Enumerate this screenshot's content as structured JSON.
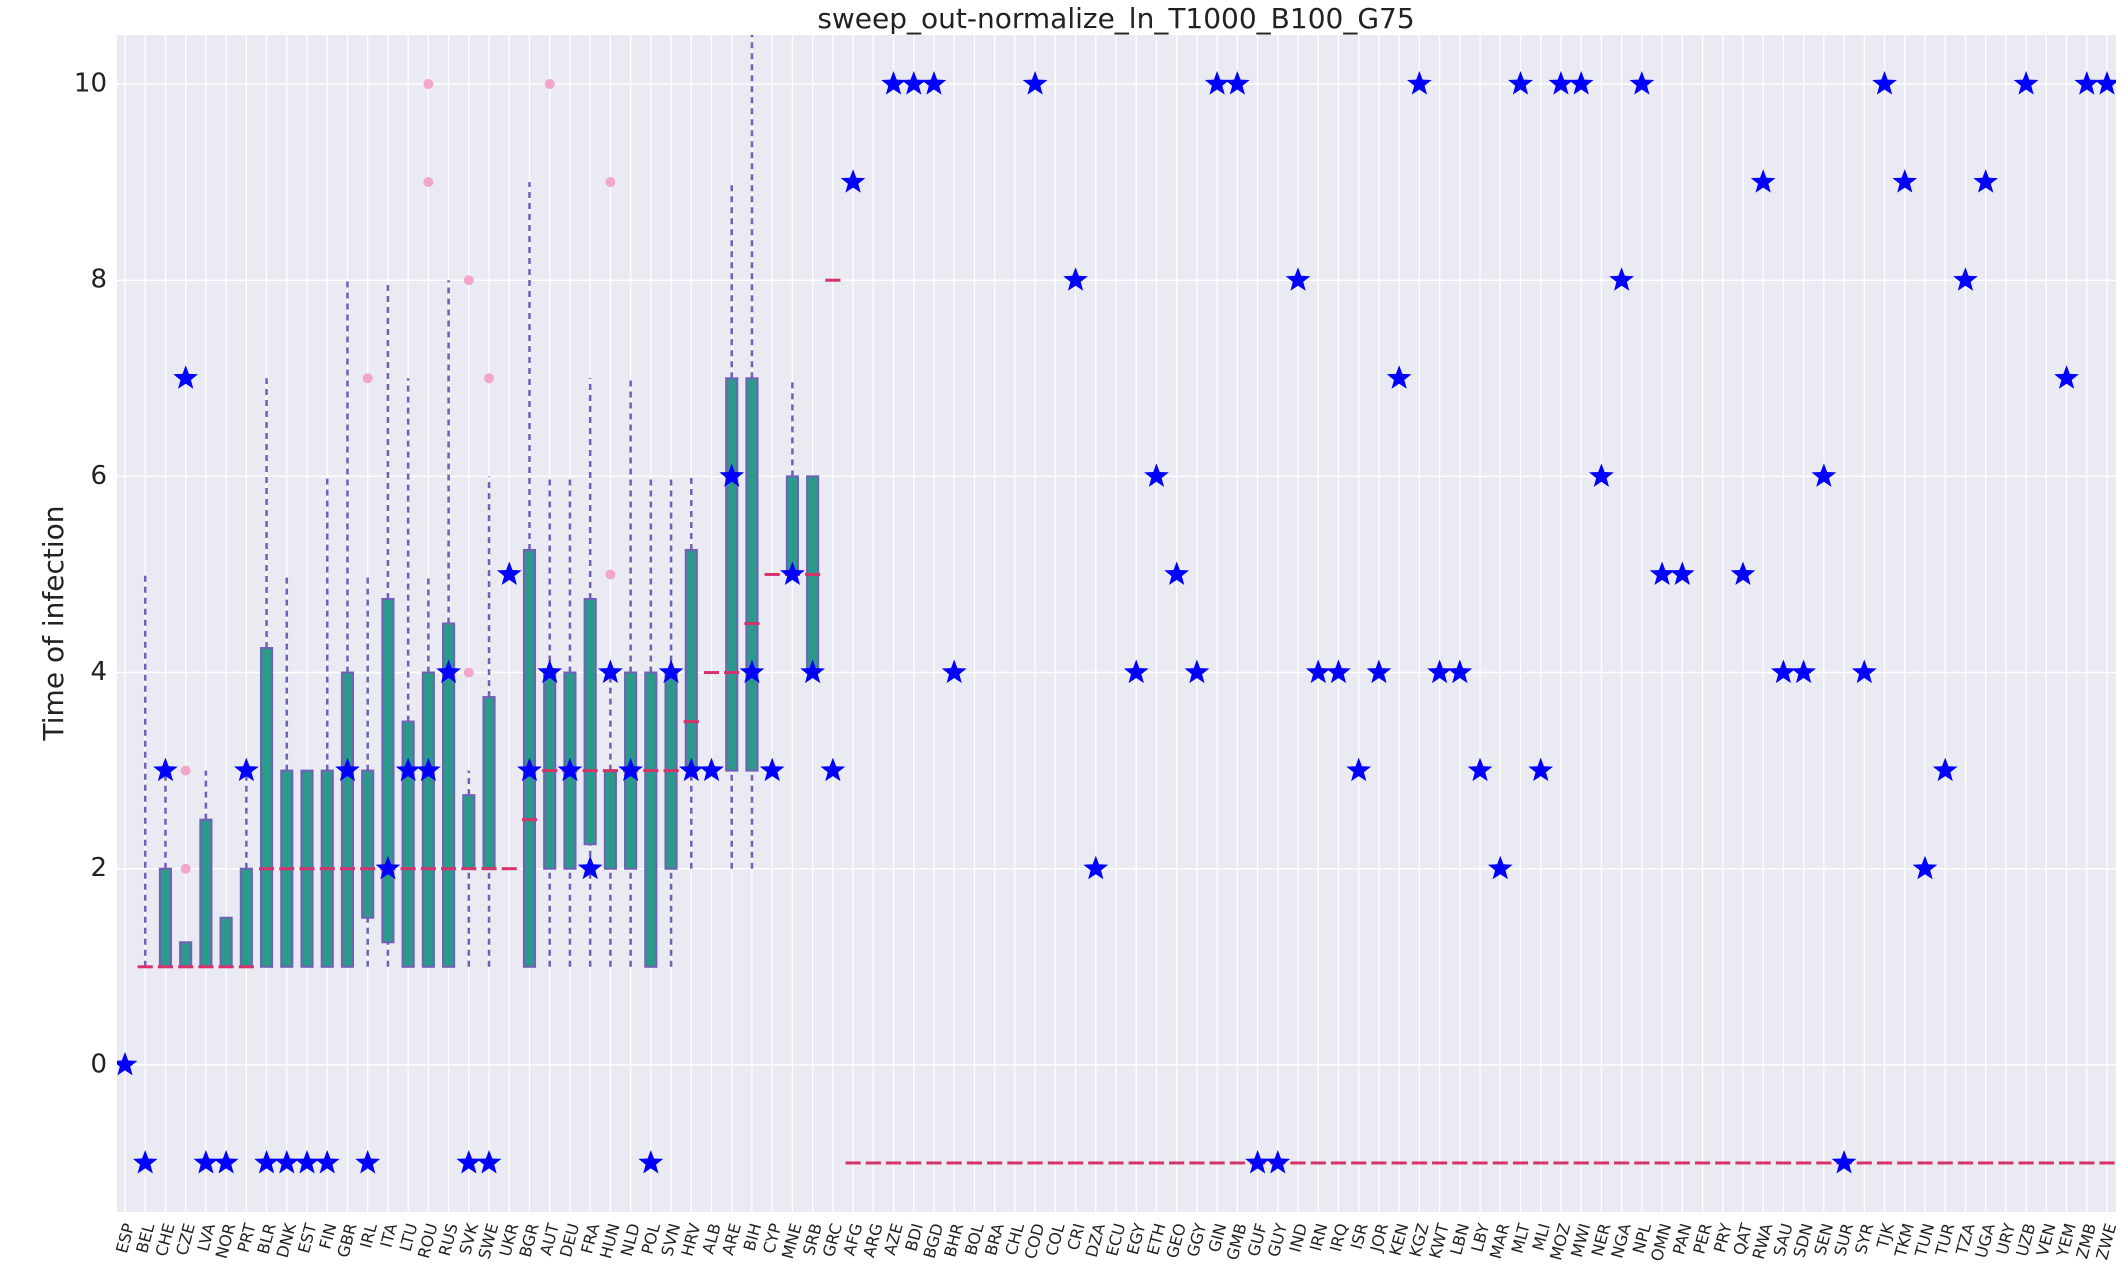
{
  "chart_data": {
    "type": "box",
    "title": "sweep_out-normalize_ln_T1000_B100_G75",
    "y_label": "Time of infection",
    "categories": [
      "ESP",
      "BEL",
      "CHE",
      "CZE",
      "LVA",
      "NOR",
      "PRT",
      "BLR",
      "DNK",
      "EST",
      "FIN",
      "GBR",
      "IRL",
      "ITA",
      "LTU",
      "ROU",
      "RUS",
      "SVK",
      "SWE",
      "UKR",
      "BGR",
      "AUT",
      "DEU",
      "FRA",
      "HUN",
      "NLD",
      "POL",
      "SVN",
      "HRV",
      "ALB",
      "ARE",
      "BIH",
      "CYP",
      "MNE",
      "SRB",
      "GRC",
      "AFG",
      "ARG",
      "AZE",
      "BDI",
      "BGD",
      "BHR",
      "BOL",
      "BRA",
      "CHL",
      "COD",
      "COL",
      "CRI",
      "DZA",
      "ECU",
      "EGY",
      "ETH",
      "GEO",
      "GGY",
      "GIN",
      "GMB",
      "GUF",
      "GUY",
      "IND",
      "IRN",
      "IRQ",
      "ISR",
      "JOR",
      "KEN",
      "KGZ",
      "KWT",
      "LBN",
      "LBY",
      "MAR",
      "MLT",
      "MLI",
      "MOZ",
      "MWI",
      "NER",
      "NGA",
      "NPL",
      "OMN",
      "PAN",
      "PER",
      "PRY",
      "QAT",
      "RWA",
      "SAU",
      "SDN",
      "SEN",
      "SUR",
      "SYR",
      "TJK",
      "TKM",
      "TUN",
      "TUR",
      "TZA",
      "UGA",
      "URY",
      "UZB",
      "VEN",
      "YEM",
      "ZMB",
      "ZWE"
    ],
    "whislo": [
      null,
      1,
      1,
      1,
      1,
      1,
      1,
      1,
      1,
      1,
      1,
      1,
      1,
      1,
      1,
      1,
      1,
      1,
      1,
      2,
      1,
      1,
      1,
      1,
      1,
      1,
      1,
      1,
      2,
      4,
      2,
      2,
      5,
      5,
      4,
      8,
      -1,
      -1,
      -1,
      -1,
      -1,
      -1,
      -1,
      -1,
      -1,
      -1,
      -1,
      -1,
      -1,
      -1,
      -1,
      -1,
      -1,
      -1,
      -1,
      -1,
      -1,
      -1,
      -1,
      -1,
      -1,
      -1,
      -1,
      -1,
      -1,
      -1,
      -1,
      -1,
      -1,
      -1,
      -1,
      -1,
      -1,
      -1,
      -1,
      -1,
      -1,
      -1,
      -1,
      -1,
      -1,
      -1,
      -1,
      -1,
      -1,
      -1,
      -1,
      -1,
      -1,
      -1,
      -1,
      -1,
      -1,
      -1,
      -1,
      -1,
      -1,
      -1,
      -1
    ],
    "q1": [
      null,
      1,
      1,
      1,
      1,
      1,
      1,
      1,
      1,
      1,
      1,
      1,
      1.5,
      1.25,
      1,
      1,
      1,
      2,
      2,
      2,
      1,
      2,
      2,
      2.25,
      2,
      2,
      1,
      2,
      3,
      4,
      3,
      3,
      5,
      5,
      4,
      8,
      -1,
      -1,
      -1,
      -1,
      -1,
      -1,
      -1,
      -1,
      -1,
      -1,
      -1,
      -1,
      -1,
      -1,
      -1,
      -1,
      -1,
      -1,
      -1,
      -1,
      -1,
      -1,
      -1,
      -1,
      -1,
      -1,
      -1,
      -1,
      -1,
      -1,
      -1,
      -1,
      -1,
      -1,
      -1,
      -1,
      -1,
      -1,
      -1,
      -1,
      -1,
      -1,
      -1,
      -1,
      -1,
      -1,
      -1,
      -1,
      -1,
      -1,
      -1,
      -1,
      -1,
      -1,
      -1,
      -1,
      -1,
      -1,
      -1,
      -1,
      -1,
      -1,
      -1
    ],
    "median": [
      null,
      1,
      1,
      1,
      1,
      1,
      1,
      2,
      2,
      2,
      2,
      2,
      2,
      2,
      2,
      2,
      2,
      2,
      2,
      2,
      2.5,
      3,
      3,
      3,
      3,
      3,
      3,
      3,
      3.5,
      4,
      4,
      4.5,
      5,
      5,
      5,
      8,
      -1,
      -1,
      -1,
      -1,
      -1,
      -1,
      -1,
      -1,
      -1,
      -1,
      -1,
      -1,
      -1,
      -1,
      -1,
      -1,
      -1,
      -1,
      -1,
      -1,
      -1,
      -1,
      -1,
      -1,
      -1,
      -1,
      -1,
      -1,
      -1,
      -1,
      -1,
      -1,
      -1,
      -1,
      -1,
      -1,
      -1,
      -1,
      -1,
      -1,
      -1,
      -1,
      -1,
      -1,
      -1,
      -1,
      -1,
      -1,
      -1,
      -1,
      -1,
      -1,
      -1,
      -1,
      -1,
      -1,
      -1,
      -1,
      -1,
      -1,
      -1,
      -1,
      -1
    ],
    "q3": [
      null,
      1,
      2,
      1.25,
      2.5,
      1.5,
      2,
      4.25,
      3,
      3,
      3,
      4,
      3,
      4.75,
      3.5,
      4,
      4.5,
      2.75,
      3.75,
      2,
      5.25,
      4,
      4,
      4.75,
      3,
      4,
      4,
      4,
      5.25,
      4,
      7,
      7,
      5,
      6,
      6,
      8,
      -1,
      -1,
      -1,
      -1,
      -1,
      -1,
      -1,
      -1,
      -1,
      -1,
      -1,
      -1,
      -1,
      -1,
      -1,
      -1,
      -1,
      -1,
      -1,
      -1,
      -1,
      -1,
      -1,
      -1,
      -1,
      -1,
      -1,
      -1,
      -1,
      -1,
      -1,
      -1,
      -1,
      -1,
      -1,
      -1,
      -1,
      -1,
      -1,
      -1,
      -1,
      -1,
      -1,
      -1,
      -1,
      -1,
      -1,
      -1,
      -1,
      -1,
      -1,
      -1,
      -1,
      -1,
      -1,
      -1,
      -1,
      -1,
      -1,
      -1,
      -1,
      -1,
      -1
    ],
    "whishi": [
      null,
      5,
      3,
      1.25,
      3,
      1.5,
      3,
      7,
      5,
      3,
      6,
      8,
      5,
      8,
      7,
      5,
      8,
      3,
      6,
      2,
      9,
      6,
      6,
      7,
      4,
      7,
      6,
      6,
      6,
      4,
      9,
      11,
      5,
      7,
      6,
      8,
      -1,
      -1,
      -1,
      -1,
      -1,
      -1,
      -1,
      -1,
      -1,
      -1,
      -1,
      -1,
      -1,
      -1,
      -1,
      -1,
      -1,
      -1,
      -1,
      -1,
      -1,
      -1,
      -1,
      -1,
      -1,
      -1,
      -1,
      -1,
      -1,
      -1,
      -1,
      -1,
      -1,
      -1,
      -1,
      -1,
      -1,
      -1,
      -1,
      -1,
      -1,
      -1,
      -1,
      -1,
      -1,
      -1,
      -1,
      -1,
      -1,
      -1,
      -1,
      -1,
      -1,
      -1,
      -1,
      -1,
      -1,
      -1,
      -1,
      -1,
      -1,
      -1,
      -1
    ],
    "fliers": [
      [],
      [],
      [],
      [
        2,
        3
      ],
      [],
      [],
      [],
      [],
      [],
      [],
      [],
      [],
      [
        7
      ],
      [],
      [],
      [
        9,
        10
      ],
      [],
      [
        4,
        8
      ],
      [
        7
      ],
      [],
      [],
      [
        10
      ],
      [],
      [],
      [
        5,
        9
      ],
      [],
      [],
      [],
      [],
      [],
      [],
      [],
      [],
      [],
      [],
      [],
      [],
      [],
      [],
      [],
      [],
      [],
      [],
      [],
      [],
      [],
      [],
      [],
      [],
      [],
      [],
      [],
      [],
      [],
      [],
      [],
      [],
      [],
      [],
      [],
      [],
      [],
      [],
      [],
      [],
      [],
      [],
      [],
      [],
      [],
      [],
      [],
      [],
      [],
      [],
      [],
      [],
      [],
      [],
      [],
      [],
      [],
      [],
      [],
      [],
      [],
      [],
      [],
      [],
      [],
      [],
      [],
      [],
      [],
      [],
      [],
      [],
      [],
      []
    ],
    "points": [
      0,
      -1,
      3,
      7,
      -1,
      -1,
      3,
      -1,
      -1,
      -1,
      -1,
      3,
      -1,
      2,
      3,
      3,
      4,
      -1,
      -1,
      5,
      3,
      4,
      3,
      2,
      4,
      3,
      -1,
      4,
      3,
      3,
      6,
      4,
      3,
      5,
      4,
      3,
      9,
      null,
      10,
      10,
      10,
      4,
      null,
      null,
      null,
      10,
      null,
      8,
      2,
      null,
      4,
      6,
      5,
      4,
      10,
      10,
      -1,
      -1,
      8,
      4,
      4,
      3,
      4,
      7,
      10,
      4,
      4,
      3,
      2,
      10,
      3,
      10,
      10,
      6,
      8,
      10,
      5,
      5,
      null,
      null,
      5,
      9,
      4,
      4,
      6,
      -1,
      4,
      10,
      9,
      2,
      3,
      8,
      9,
      null,
      10,
      null,
      7,
      10,
      10
    ],
    "box_color": "#2b9a8a",
    "edge_color": "#7060b8",
    "median_color": "#d6336c",
    "flier_color": "#f2a7c8",
    "point_color": "#0000ff",
    "ylim": [
      -1.5,
      10.5
    ],
    "yticks": [
      0,
      2,
      4,
      6,
      8,
      10
    ],
    "grid": true
  }
}
